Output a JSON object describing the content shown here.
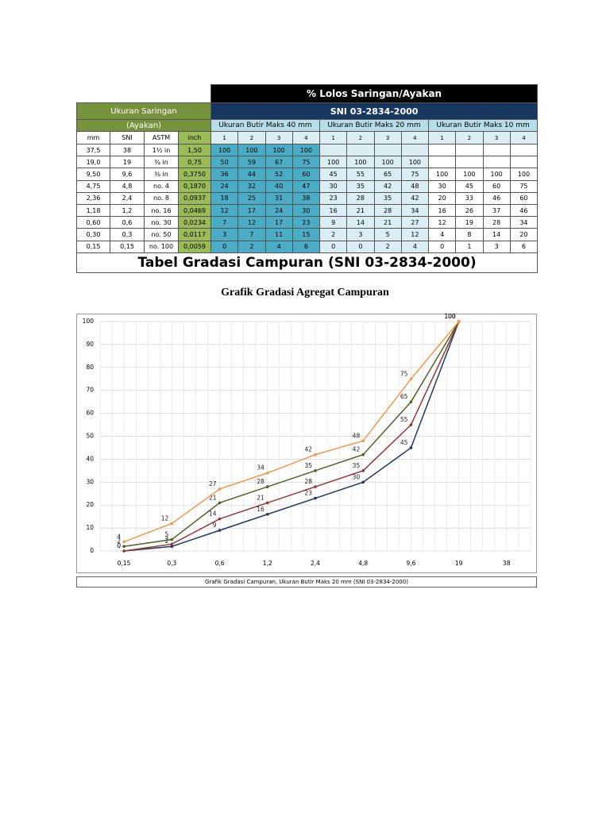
{
  "table": {
    "title": "% Lolos Saringan/Ayakan",
    "left_header": "Ukuran Saringan",
    "left_subheader": "(Ayakan)",
    "standard": "SNI 03-2834-2000",
    "groups": [
      "Ukuran Butir Maks 40 mm",
      "Ukuran Butir Maks 20 mm",
      "Ukuran Butir Maks 10 mm"
    ],
    "columns": [
      "mm",
      "SNI",
      "ASTM",
      "inch"
    ],
    "zones": [
      "1",
      "2",
      "3",
      "4"
    ],
    "rows": [
      [
        "37,5",
        "38",
        "1½ in",
        "1,50",
        "100",
        "100",
        "100",
        "100",
        null,
        null,
        null,
        null,
        null,
        null,
        null,
        null
      ],
      [
        "19,0",
        "19",
        "¾ in",
        "0,75",
        "50",
        "59",
        "67",
        "75",
        "100",
        "100",
        "100",
        "100",
        null,
        null,
        null,
        null
      ],
      [
        "9,50",
        "9,6",
        "⅜ in",
        "0,3750",
        "36",
        "44",
        "52",
        "60",
        "45",
        "55",
        "65",
        "75",
        "100",
        "100",
        "100",
        "100"
      ],
      [
        "4,75",
        "4,8",
        "no. 4",
        "0,1870",
        "24",
        "32",
        "40",
        "47",
        "30",
        "35",
        "42",
        "48",
        "30",
        "45",
        "60",
        "75"
      ],
      [
        "2,36",
        "2,4",
        "no. 8",
        "0,0937",
        "18",
        "25",
        "31",
        "38",
        "23",
        "28",
        "35",
        "42",
        "20",
        "33",
        "46",
        "60"
      ],
      [
        "1,18",
        "1,2",
        "no. 16",
        "0,0469",
        "12",
        "17",
        "24",
        "30",
        "16",
        "21",
        "28",
        "34",
        "16",
        "26",
        "37",
        "46"
      ],
      [
        "0,60",
        "0,6",
        "no. 30",
        "0,0234",
        "7",
        "12",
        "17",
        "23",
        "9",
        "14",
        "21",
        "27",
        "12",
        "19",
        "28",
        "34"
      ],
      [
        "0,30",
        "0,3",
        "no. 50",
        "0,0117",
        "3",
        "7",
        "11",
        "15",
        "2",
        "3",
        "5",
        "12",
        "4",
        "8",
        "14",
        "20"
      ],
      [
        "0,15",
        "0,15",
        "no. 100",
        "0,0059",
        "0",
        "2",
        "4",
        "6",
        "0",
        "0",
        "2",
        "4",
        "0",
        "1",
        "3",
        "6"
      ]
    ],
    "caption": "Tabel Gradasi Campuran (SNI 03-2834-2000)"
  },
  "heading": "Grafik Gradasi Agregat Campuran",
  "chart_data": {
    "type": "line",
    "categories": [
      "0,15",
      "0,3",
      "0,6",
      "1,2",
      "2,4",
      "4,8",
      "9,6",
      "19",
      "38"
    ],
    "series": [
      {
        "color": "#1f3864",
        "values": [
          0,
          2,
          9,
          16,
          23,
          30,
          45,
          100,
          null
        ]
      },
      {
        "color": "#953735",
        "values": [
          0,
          3,
          14,
          21,
          28,
          35,
          55,
          100,
          null
        ]
      },
      {
        "color": "#4f6228",
        "values": [
          2,
          5,
          21,
          28,
          35,
          42,
          65,
          100,
          null
        ]
      },
      {
        "color": "#f79646",
        "values": [
          4,
          12,
          27,
          34,
          42,
          48,
          75,
          100,
          null
        ]
      }
    ],
    "ylim": [
      0,
      100
    ],
    "yticks": [
      0,
      10,
      20,
      30,
      40,
      50,
      60,
      70,
      80,
      90,
      100
    ],
    "grid": true,
    "caption": "Grafik Gradasi Campuran, Ukuran Butir Maks 20 mm (SNI 03-2834-2000)"
  }
}
